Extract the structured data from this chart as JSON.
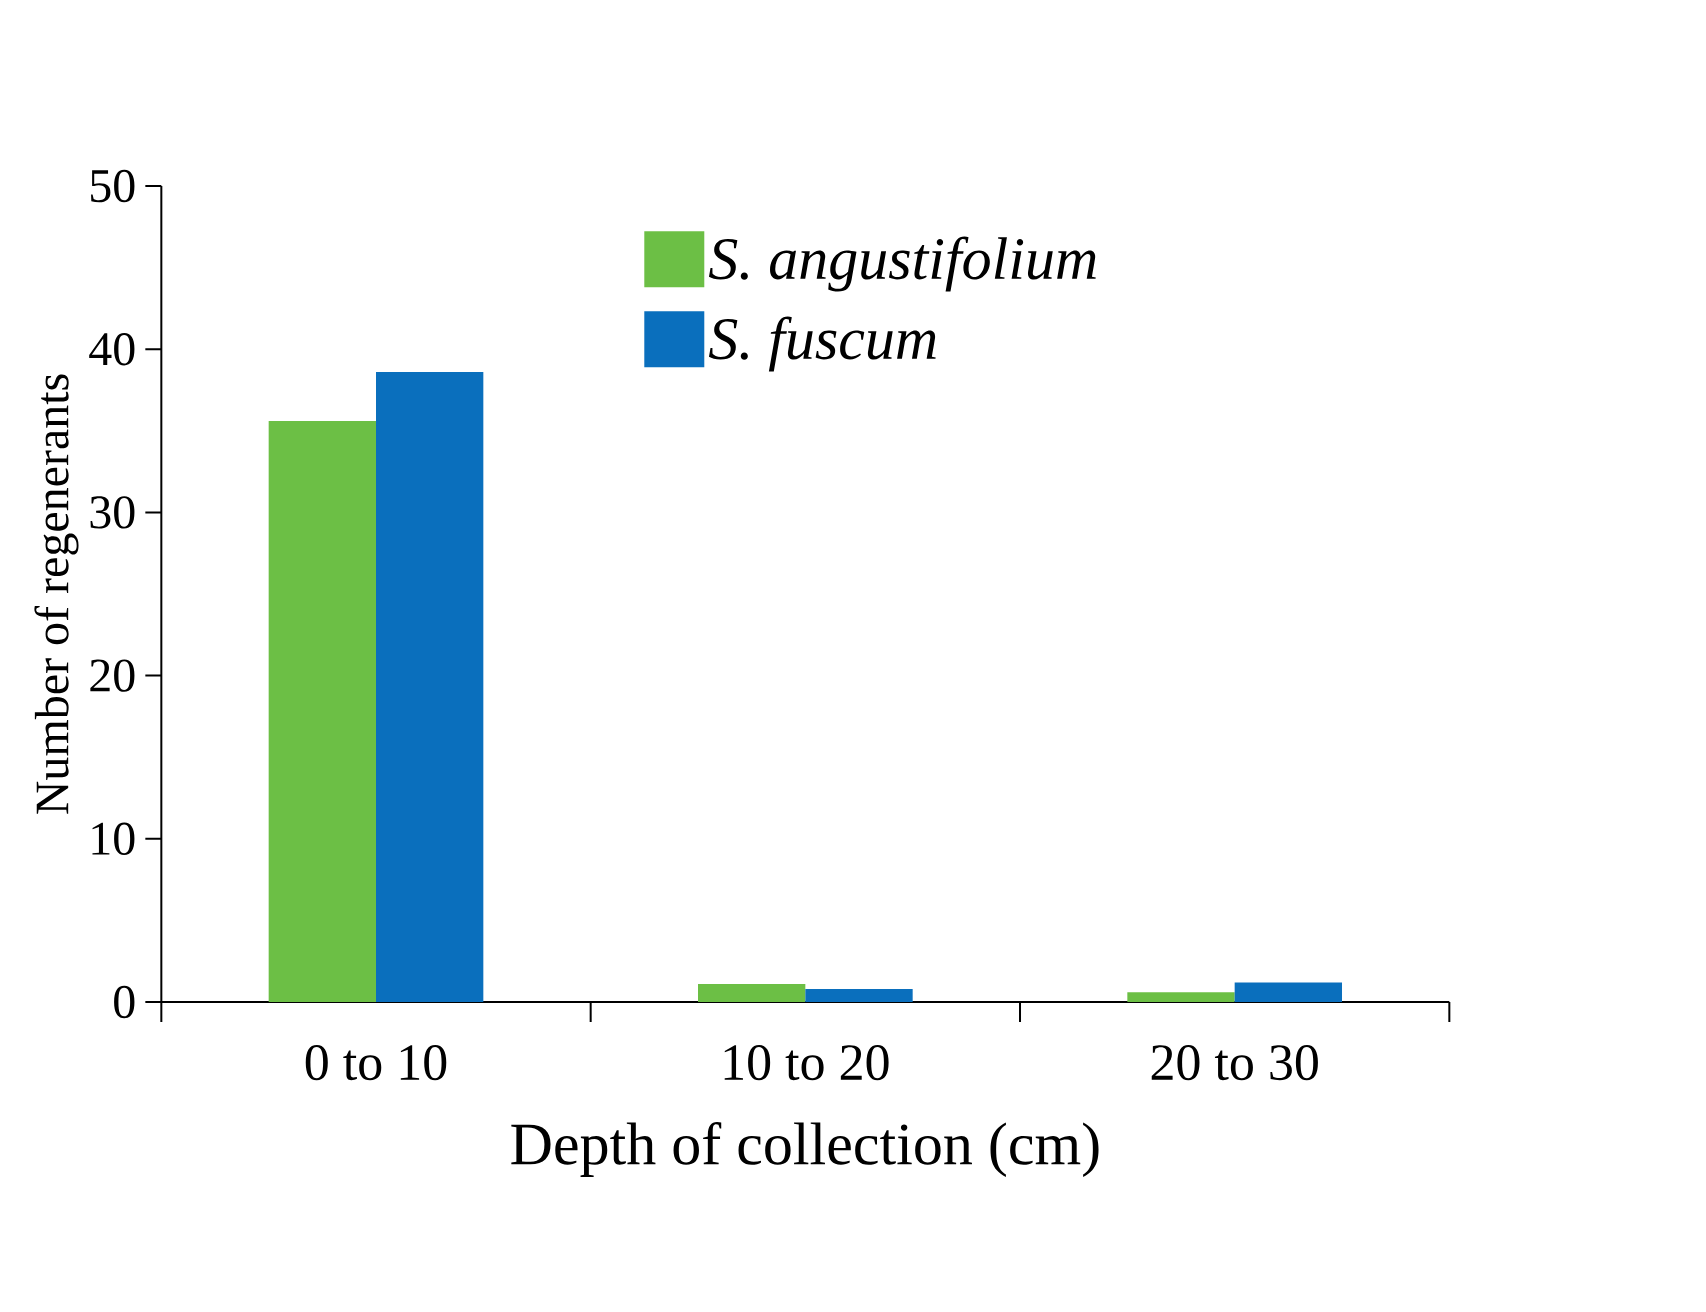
{
  "chart_data": {
    "type": "bar",
    "xlabel": "Depth of collection (cm)",
    "ylabel": "Number of regenerants",
    "categories": [
      "0 to 10",
      "10 to 20",
      "20 to 30"
    ],
    "series": [
      {
        "name": "S. angustifolium",
        "color": "#6cbf45",
        "values": [
          35.6,
          1.1,
          0.6
        ]
      },
      {
        "name": "S. fuscum",
        "color": "#0a6fbd",
        "values": [
          38.6,
          0.8,
          1.2
        ]
      }
    ],
    "ylim": [
      0,
      50
    ],
    "yticks": [
      0,
      10,
      20,
      30,
      40,
      50
    ],
    "legend": "top right",
    "grid": false
  }
}
